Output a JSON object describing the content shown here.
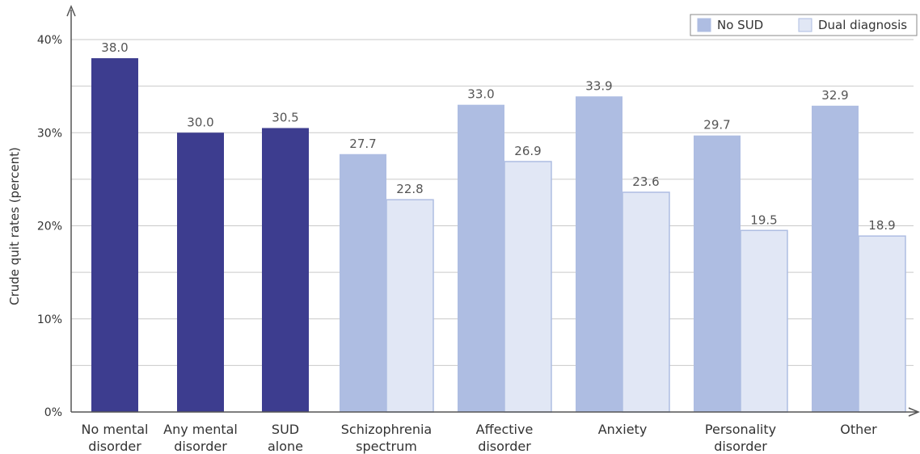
{
  "chart_data": {
    "type": "bar",
    "ylabel": "Crude quit rates  (percent)",
    "ylim": [
      0,
      40
    ],
    "yticks": [
      "0%",
      "10%",
      "20%",
      "30%",
      "40%"
    ],
    "grid": true,
    "legend_position": "top-right",
    "legend": [
      {
        "name": "No SUD",
        "color": "#aebde2"
      },
      {
        "name": "Dual diagnosis",
        "color": "#e1e7f5"
      }
    ],
    "groups": [
      {
        "label": [
          "No mental",
          "disorder"
        ],
        "bars": [
          {
            "kind": "single",
            "value": 38.0,
            "label": "38.0"
          }
        ]
      },
      {
        "label": [
          "Any mental",
          "disorder"
        ],
        "bars": [
          {
            "kind": "single",
            "value": 30.0,
            "label": "30.0"
          }
        ]
      },
      {
        "label": [
          "SUD",
          "alone"
        ],
        "bars": [
          {
            "kind": "single",
            "value": 30.5,
            "label": "30.5"
          }
        ]
      },
      {
        "label": [
          "Schizophrenia",
          "spectrum"
        ],
        "bars": [
          {
            "kind": "no_sud",
            "value": 27.7,
            "label": "27.7"
          },
          {
            "kind": "dual",
            "value": 22.8,
            "label": "22.8"
          }
        ]
      },
      {
        "label": [
          "Affective",
          "disorder"
        ],
        "bars": [
          {
            "kind": "no_sud",
            "value": 33.0,
            "label": "33.0"
          },
          {
            "kind": "dual",
            "value": 26.9,
            "label": "26.9"
          }
        ]
      },
      {
        "label": [
          "Anxiety"
        ],
        "bars": [
          {
            "kind": "no_sud",
            "value": 33.9,
            "label": "33.9"
          },
          {
            "kind": "dual",
            "value": 23.6,
            "label": "23.6"
          }
        ]
      },
      {
        "label": [
          "Personality",
          "disorder"
        ],
        "bars": [
          {
            "kind": "no_sud",
            "value": 29.7,
            "label": "29.7"
          },
          {
            "kind": "dual",
            "value": 19.5,
            "label": "19.5"
          }
        ]
      },
      {
        "label": [
          "Other"
        ],
        "bars": [
          {
            "kind": "no_sud",
            "value": 32.9,
            "label": "32.9"
          },
          {
            "kind": "dual",
            "value": 18.9,
            "label": "18.9"
          }
        ]
      }
    ],
    "colors": {
      "single": "#3d3d8f",
      "no_sud": "#aebde2",
      "dual": "#e1e7f5",
      "dual_border": "#aebde2",
      "grid": "#c9c9c9",
      "axis": "#555555"
    }
  }
}
